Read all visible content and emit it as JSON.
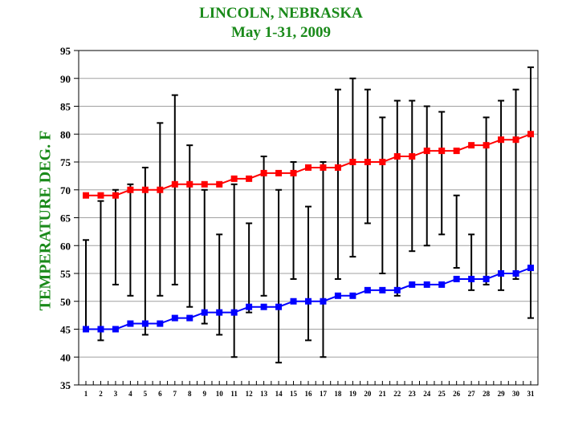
{
  "chart_data": {
    "type": "line",
    "title": "LINCOLN, NEBRASKA",
    "subtitle": "May 1-31,  2009",
    "xlabel": "",
    "ylabel": "TEMPERATURE DEG. F",
    "x": [
      1,
      2,
      3,
      4,
      5,
      6,
      7,
      8,
      9,
      10,
      11,
      12,
      13,
      14,
      15,
      16,
      17,
      18,
      19,
      20,
      21,
      22,
      23,
      24,
      25,
      26,
      27,
      28,
      29,
      30,
      31
    ],
    "xlim": [
      1,
      31
    ],
    "ylim": [
      35,
      95
    ],
    "yticks": [
      35,
      40,
      45,
      50,
      55,
      60,
      65,
      70,
      75,
      80,
      85,
      90,
      95
    ],
    "grid": true,
    "series": [
      {
        "name": "",
        "color": "#ff0000",
        "marker": "square",
        "values": [
          69,
          69,
          69,
          70,
          70,
          70,
          71,
          71,
          71,
          71,
          72,
          72,
          73,
          73,
          73,
          74,
          74,
          74,
          75,
          75,
          75,
          76,
          76,
          77,
          77,
          77,
          78,
          78,
          79,
          79,
          80
        ]
      },
      {
        "name": "",
        "color": "#0000ff",
        "marker": "square",
        "values": [
          45,
          45,
          45,
          46,
          46,
          46,
          47,
          47,
          48,
          48,
          48,
          49,
          49,
          49,
          50,
          50,
          50,
          51,
          51,
          52,
          52,
          52,
          53,
          53,
          53,
          54,
          54,
          54,
          55,
          55,
          56
        ]
      }
    ],
    "ranges": {
      "color": "#000000",
      "high": [
        61,
        68,
        70,
        71,
        74,
        82,
        87,
        78,
        70,
        62,
        71,
        64,
        76,
        70,
        75,
        67,
        75,
        88,
        90,
        88,
        83,
        86,
        86,
        85,
        84,
        69,
        62,
        83,
        86,
        88,
        92
      ],
      "low": [
        45,
        43,
        53,
        51,
        44,
        51,
        53,
        49,
        46,
        44,
        40,
        48,
        51,
        39,
        54,
        43,
        40,
        54,
        58,
        64,
        55,
        51,
        59,
        60,
        62,
        56,
        52,
        53,
        52,
        54,
        47
      ]
    }
  }
}
